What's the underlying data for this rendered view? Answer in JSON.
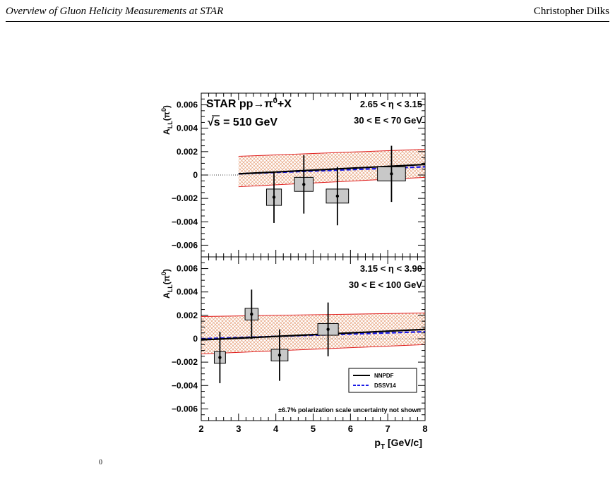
{
  "header": {
    "left": "Overview of Gluon Helicity Measurements at STAR",
    "right": "Christopher Dilks"
  },
  "caption_fragment": "0",
  "chart_data": {
    "type": "scatter",
    "xlabel": "p_T [GeV/c]",
    "xlim": [
      2,
      8
    ],
    "xticks": [
      "2",
      "3",
      "4",
      "5",
      "6",
      "7",
      "8"
    ],
    "yticks": [
      "−0.006",
      "−0.004",
      "−0.002",
      "0",
      "0.002",
      "0.004",
      "0.006"
    ],
    "legend": {
      "position": "bottom-right",
      "entries": [
        "NNPDF",
        "DSSV14"
      ]
    },
    "colors": {
      "data": "#000000",
      "syst_box": "#c8c8c8",
      "band_edge": "#e02020",
      "band_fill": "#e5a07a",
      "nnpdf": "#000000",
      "dssv": "#1a1ae6"
    },
    "note": "±6.7% polarization scale uncertainty not shown",
    "panels": [
      {
        "ylabel": "A_LL(π^0)",
        "ylim": [
          -0.007,
          0.007
        ],
        "labels": [
          "STAR pp→π^0+X",
          "√s = 510 GeV",
          "2.65 < η < 3.15",
          "30 < E < 70 GeV"
        ],
        "points": [
          {
            "x": 3.95,
            "y": -0.0019,
            "stat": 0.0022,
            "sys_w": 0.4,
            "sys_h": 0.0007
          },
          {
            "x": 4.75,
            "y": -0.0008,
            "stat": 0.0025,
            "sys_w": 0.5,
            "sys_h": 0.0006
          },
          {
            "x": 5.65,
            "y": -0.0018,
            "stat": 0.0025,
            "sys_w": 0.6,
            "sys_h": 0.0006
          },
          {
            "x": 7.1,
            "y": 0.0001,
            "stat": 0.0024,
            "sys_w": 0.75,
            "sys_h": 0.0006
          }
        ],
        "theory_x": [
          3.0,
          8.0
        ],
        "band_upper": [
          0.0016,
          0.0022
        ],
        "band_lower": [
          -0.001,
          -0.0002
        ],
        "nnpdf": [
          0.0001,
          0.0009
        ],
        "dssv": [
          0.0001,
          0.0007
        ],
        "dotted_x": [
          2.0,
          3.0
        ]
      },
      {
        "ylabel": "A_LL(π^0)",
        "ylim": [
          -0.007,
          0.007
        ],
        "labels": [
          "3.15 < η < 3.90",
          "30 < E < 100 GeV"
        ],
        "points": [
          {
            "x": 2.5,
            "y": -0.0016,
            "stat": 0.0022,
            "sys_w": 0.3,
            "sys_h": 0.0005
          },
          {
            "x": 3.35,
            "y": 0.0021,
            "stat": 0.0021,
            "sys_w": 0.35,
            "sys_h": 0.0005
          },
          {
            "x": 4.1,
            "y": -0.0014,
            "stat": 0.0022,
            "sys_w": 0.45,
            "sys_h": 0.0005
          },
          {
            "x": 5.4,
            "y": 0.0008,
            "stat": 0.0023,
            "sys_w": 0.55,
            "sys_h": 0.0005
          }
        ],
        "theory_x": [
          2.0,
          8.0
        ],
        "band_upper": [
          0.0019,
          0.0022
        ],
        "band_lower": [
          -0.0013,
          -0.0005
        ],
        "nnpdf": [
          -0.0001,
          0.0008
        ],
        "dssv": [
          0.0,
          0.0006
        ],
        "dotted_x": null
      }
    ]
  }
}
